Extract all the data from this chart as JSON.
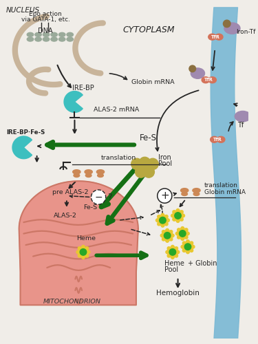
{
  "bg_color": "#f0ede8",
  "nucleus_label": "NUCLEUS",
  "cytoplasm_label": "CYTOPLASM",
  "mito_label": "MITOCHONDRION",
  "nucleus_color": "#c8b49a",
  "cell_membrane_color": "#7ab8d4",
  "mito_face_color": "#e8948a",
  "mito_edge_color": "#cc7766",
  "ire_bp_color": "#3dbfbf",
  "tfr_color": "#d4735a",
  "iron_tf_color": "#a08ab0",
  "heme_outer_color": "#e8c830",
  "heme_inner_color": "#28a828",
  "ribosome_color": "#cc8855",
  "iron_pool_color": "#b8a840",
  "arrow_black": "#252525",
  "arrow_green": "#157015",
  "text_color": "#151515"
}
